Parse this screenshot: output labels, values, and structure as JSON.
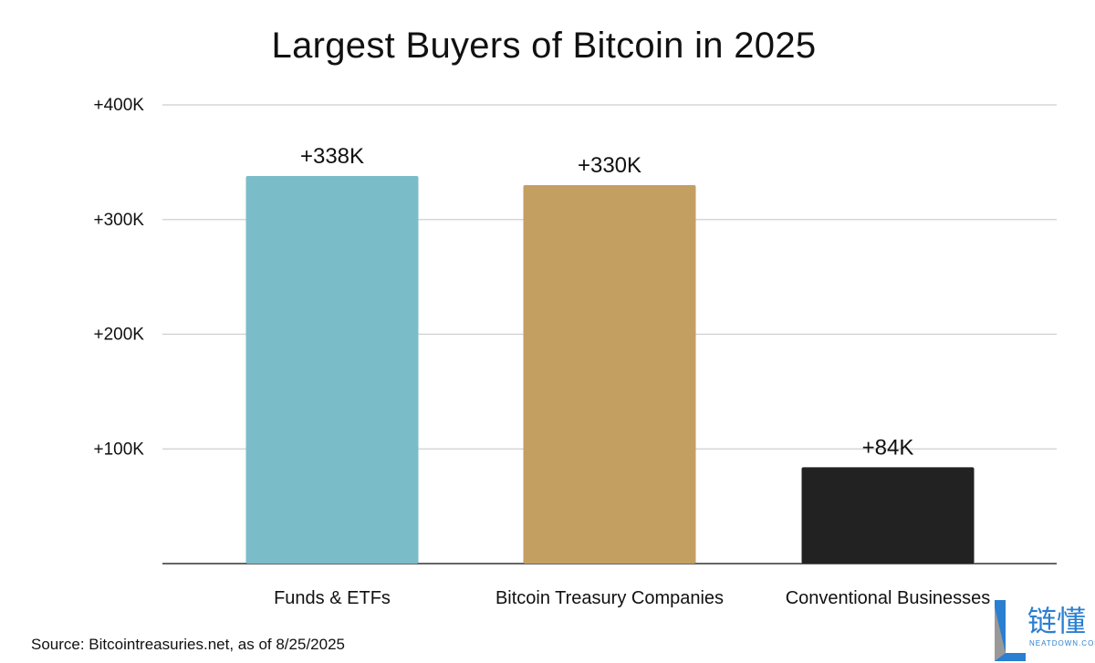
{
  "chart_data": {
    "type": "bar",
    "title": "Largest Buyers of Bitcoin in 2025",
    "categories": [
      "Funds & ETFs",
      "Bitcoin Treasury Companies",
      "Conventional Businesses"
    ],
    "values": [
      338,
      330,
      84
    ],
    "data_labels": [
      "+338K",
      "+330K",
      "+84K"
    ],
    "colors": [
      "#7bbcc9",
      "#c49f62",
      "#222222"
    ],
    "unit": "K",
    "ylim": [
      0,
      400
    ],
    "yticks": [
      100,
      200,
      300,
      400
    ],
    "ytick_labels": [
      "+100K",
      "+200K",
      "+300K",
      "+400K"
    ],
    "grid": true,
    "xlabel": "",
    "ylabel": ""
  },
  "source": "Source: Bitcointreasuries.net, as of 8/25/2025",
  "watermark": {
    "brand": "链懂",
    "site": "NEATDOWN.COM"
  }
}
